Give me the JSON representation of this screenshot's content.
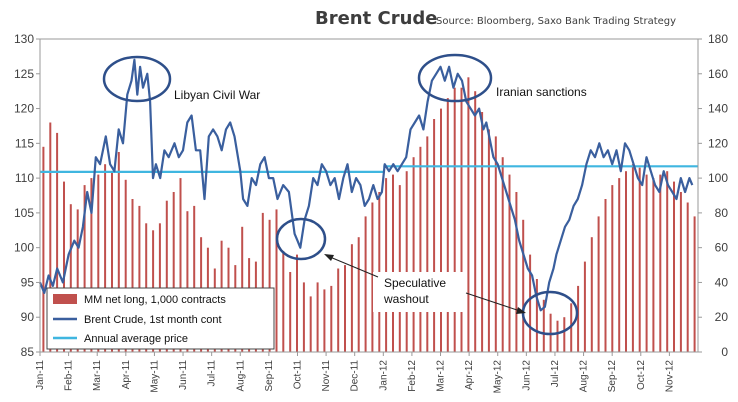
{
  "chart_data": {
    "type": "bar+line",
    "title": "Brent Crude",
    "subtitle": "Source: Bloomberg, Saxo Bank Trading Strategy",
    "left_axis": {
      "min": 85,
      "max": 130,
      "ticks": [
        85,
        90,
        95,
        100,
        105,
        110,
        115,
        120,
        125,
        130
      ]
    },
    "right_axis": {
      "min": 0,
      "max": 180,
      "ticks": [
        0,
        20,
        40,
        60,
        80,
        100,
        120,
        140,
        160,
        180
      ]
    },
    "x_labels": [
      "Jan-11",
      "Feb-11",
      "Mar-11",
      "Apr-11",
      "May-11",
      "Jun-11",
      "Jul-11",
      "Aug-11",
      "Sep-11",
      "Oct-11",
      "Nov-11",
      "Dec-11",
      "Jan-12",
      "Feb-12",
      "Mar-12",
      "Apr-12",
      "May-12",
      "Jun-12",
      "Jul-12",
      "Aug-12",
      "Sep-12",
      "Oct-12",
      "Nov-12"
    ],
    "legend": [
      "MM net long, 1,000 contracts",
      "Brent Crude, 1st month cont",
      "Annual average price"
    ],
    "annual_average_price": [
      110.9,
      111.7
    ],
    "series": [
      {
        "name": "MM net long, 1,000 contracts",
        "axis": "right",
        "values": [
          118,
          132,
          126,
          98,
          85,
          82,
          96,
          100,
          102,
          108,
          103,
          115,
          99,
          88,
          84,
          74,
          70,
          74,
          87,
          92,
          100,
          81,
          84,
          66,
          60,
          48,
          64,
          60,
          50,
          72,
          54,
          52,
          80,
          76,
          82,
          58,
          46,
          56,
          40,
          32,
          40,
          36,
          38,
          48,
          50,
          62,
          66,
          78,
          86,
          92,
          100,
          102,
          96,
          104,
          112,
          118,
          124,
          134,
          140,
          146,
          152,
          152,
          158,
          150,
          138,
          128,
          124,
          112,
          102,
          92,
          76,
          56,
          42,
          30,
          22,
          18,
          20,
          28,
          38,
          52,
          66,
          78,
          88,
          96,
          100,
          104,
          108,
          106,
          102,
          100,
          102,
          104,
          98,
          92,
          86,
          78
        ]
      },
      {
        "name": "Brent Crude, 1st month cont",
        "axis": "left",
        "points": [
          [
            0.0,
            95
          ],
          [
            0.15,
            93.5
          ],
          [
            0.3,
            96
          ],
          [
            0.45,
            94.5
          ],
          [
            0.6,
            97
          ],
          [
            0.8,
            95
          ],
          [
            1.0,
            99
          ],
          [
            1.2,
            101
          ],
          [
            1.35,
            100
          ],
          [
            1.5,
            103
          ],
          [
            1.65,
            108
          ],
          [
            1.8,
            105
          ],
          [
            1.95,
            113
          ],
          [
            2.1,
            112
          ],
          [
            2.3,
            116
          ],
          [
            2.45,
            112
          ],
          [
            2.6,
            111
          ],
          [
            2.75,
            117
          ],
          [
            2.9,
            115
          ],
          [
            3.05,
            122
          ],
          [
            3.2,
            124
          ],
          [
            3.3,
            127
          ],
          [
            3.4,
            122
          ],
          [
            3.5,
            126
          ],
          [
            3.6,
            123
          ],
          [
            3.75,
            125
          ],
          [
            3.85,
            121
          ],
          [
            3.95,
            110
          ],
          [
            4.05,
            112
          ],
          [
            4.2,
            110
          ],
          [
            4.35,
            114
          ],
          [
            4.5,
            113
          ],
          [
            4.7,
            115
          ],
          [
            4.85,
            113
          ],
          [
            5.0,
            114
          ],
          [
            5.15,
            118
          ],
          [
            5.3,
            119
          ],
          [
            5.45,
            114
          ],
          [
            5.6,
            114
          ],
          [
            5.75,
            107
          ],
          [
            5.9,
            116
          ],
          [
            6.05,
            117
          ],
          [
            6.2,
            116
          ],
          [
            6.35,
            114
          ],
          [
            6.5,
            117
          ],
          [
            6.65,
            118
          ],
          [
            6.8,
            116
          ],
          [
            7.0,
            111
          ],
          [
            7.1,
            107
          ],
          [
            7.25,
            106
          ],
          [
            7.4,
            110
          ],
          [
            7.55,
            109
          ],
          [
            7.7,
            112
          ],
          [
            7.85,
            113
          ],
          [
            8.0,
            110
          ],
          [
            8.15,
            110
          ],
          [
            8.3,
            107
          ],
          [
            8.5,
            109
          ],
          [
            8.7,
            108
          ],
          [
            8.9,
            102
          ],
          [
            9.0,
            101
          ],
          [
            9.1,
            100
          ],
          [
            9.25,
            104
          ],
          [
            9.4,
            106
          ],
          [
            9.55,
            110
          ],
          [
            9.7,
            109
          ],
          [
            9.85,
            112
          ],
          [
            10.0,
            111
          ],
          [
            10.15,
            109
          ],
          [
            10.3,
            110
          ],
          [
            10.45,
            107
          ],
          [
            10.6,
            110
          ],
          [
            10.75,
            112
          ],
          [
            10.9,
            108
          ],
          [
            11.05,
            110
          ],
          [
            11.2,
            109
          ],
          [
            11.35,
            106
          ],
          [
            11.5,
            107
          ],
          [
            11.65,
            109
          ],
          [
            11.8,
            107
          ],
          [
            11.95,
            108
          ],
          [
            12.05,
            112
          ],
          [
            12.2,
            111
          ],
          [
            12.35,
            112
          ],
          [
            12.5,
            111
          ],
          [
            12.65,
            112
          ],
          [
            12.8,
            113
          ],
          [
            12.95,
            117
          ],
          [
            13.1,
            118
          ],
          [
            13.25,
            119
          ],
          [
            13.4,
            117
          ],
          [
            13.55,
            121
          ],
          [
            13.7,
            124
          ],
          [
            13.85,
            125
          ],
          [
            14.0,
            126
          ],
          [
            14.15,
            124
          ],
          [
            14.3,
            126
          ],
          [
            14.45,
            123
          ],
          [
            14.6,
            125
          ],
          [
            14.75,
            124
          ],
          [
            14.9,
            121
          ],
          [
            15.05,
            120
          ],
          [
            15.2,
            119
          ],
          [
            15.35,
            120
          ],
          [
            15.5,
            117
          ],
          [
            15.6,
            118
          ],
          [
            15.7,
            116
          ],
          [
            15.85,
            113
          ],
          [
            16.0,
            112
          ],
          [
            16.15,
            110
          ],
          [
            16.3,
            108
          ],
          [
            16.45,
            106
          ],
          [
            16.6,
            104
          ],
          [
            16.75,
            101
          ],
          [
            16.9,
            99
          ],
          [
            17.05,
            97
          ],
          [
            17.2,
            96
          ],
          [
            17.35,
            93
          ],
          [
            17.5,
            91
          ],
          [
            17.65,
            91.5
          ],
          [
            17.8,
            95
          ],
          [
            17.95,
            97
          ],
          [
            18.05,
            99
          ],
          [
            18.2,
            101
          ],
          [
            18.35,
            103
          ],
          [
            18.5,
            104
          ],
          [
            18.65,
            106
          ],
          [
            18.8,
            107
          ],
          [
            18.95,
            109
          ],
          [
            19.1,
            112
          ],
          [
            19.25,
            114
          ],
          [
            19.4,
            113
          ],
          [
            19.55,
            115
          ],
          [
            19.7,
            113
          ],
          [
            19.85,
            114
          ],
          [
            20.0,
            112
          ],
          [
            20.15,
            114
          ],
          [
            20.3,
            111
          ],
          [
            20.45,
            115
          ],
          [
            20.6,
            114
          ],
          [
            20.75,
            112
          ],
          [
            20.9,
            110
          ],
          [
            21.05,
            109
          ],
          [
            21.2,
            113
          ],
          [
            21.35,
            111
          ],
          [
            21.5,
            109
          ],
          [
            21.65,
            108
          ],
          [
            21.8,
            111
          ],
          [
            21.95,
            109
          ],
          [
            22.1,
            108
          ],
          [
            22.25,
            107
          ],
          [
            22.4,
            110
          ],
          [
            22.55,
            108
          ],
          [
            22.7,
            110
          ],
          [
            22.8,
            109
          ]
        ]
      }
    ],
    "annotations": [
      "Libyan Civil War",
      "Iranian sanctions",
      "Speculative",
      "washout"
    ],
    "grid": false,
    "legend_position": "bottom-left"
  },
  "colors": {
    "bars": "#c0504d",
    "line": "#3a5f9e",
    "average": "#3fb6e0",
    "ellipse": "#2e4f8a"
  }
}
